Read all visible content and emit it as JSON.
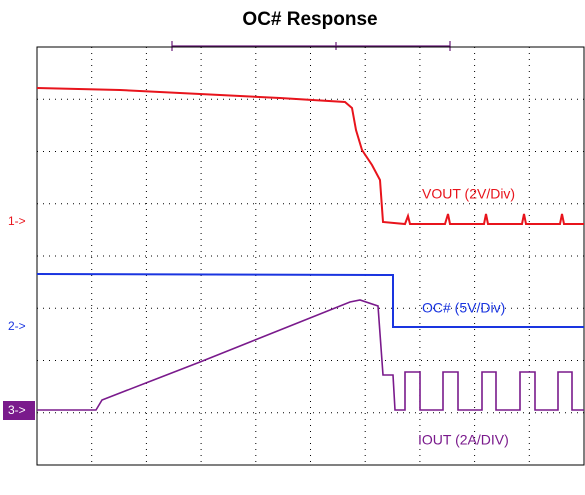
{
  "title": "OC# Response",
  "channel_markers": [
    "1->",
    "2->",
    "3->"
  ],
  "trace_labels": [
    "VOUT (2V/Div)",
    "OC# (5V/Div)",
    "IOUT (2A/DIV)"
  ]
}
